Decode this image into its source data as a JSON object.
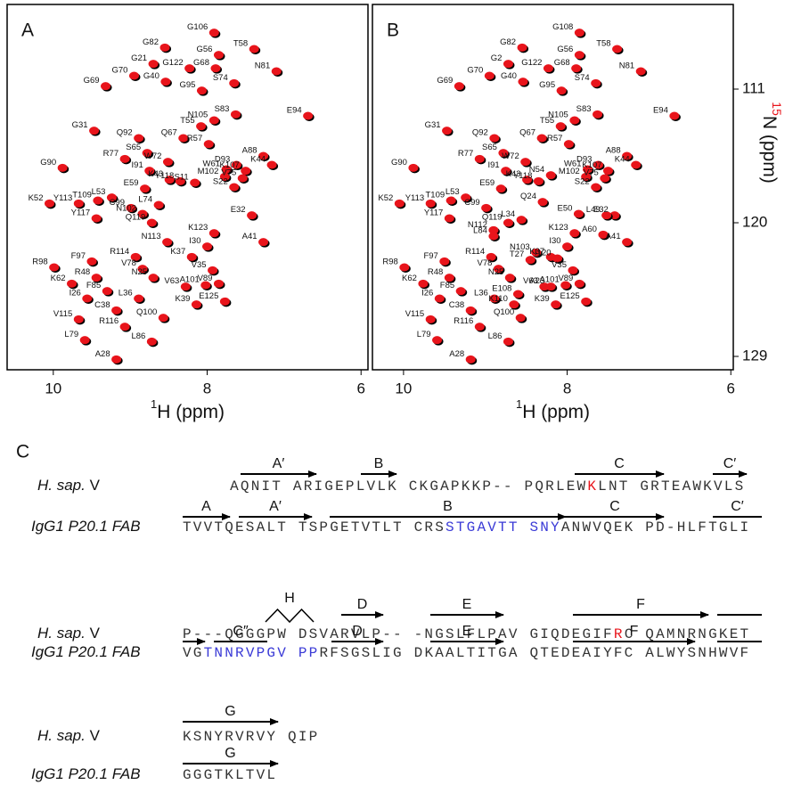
{
  "chart_data": [
    {
      "type": "scatter",
      "panel_label": "A",
      "color": "#e8141b",
      "shadow_color": "#000000",
      "x_label": {
        "superscript": "1",
        "text": "H (ppm)"
      },
      "xlim": [
        10.6,
        5.91
      ],
      "xticks": [
        10,
        8,
        6
      ],
      "ylim": [
        105.3,
        129.9
      ],
      "labels": [
        "G106",
        "G82",
        "T58",
        "G56",
        "G21",
        "G122",
        "G68",
        "N81",
        "G70",
        "G69",
        "G40",
        "G95",
        "S74",
        "E94",
        "G31",
        "S83",
        "N105",
        "T55",
        "Q67",
        "A88",
        "Q92",
        "R57",
        "D93",
        "K44",
        "G90",
        "S65",
        "W72",
        "R77",
        "I91",
        "K43",
        "S11",
        "Y118",
        "W61",
        "K107",
        "M102",
        "V75",
        "S22",
        "E32",
        "C99",
        "E59",
        "K52",
        "L53",
        "T109",
        "Y113",
        "Y117",
        "L74",
        "N102",
        "Q119",
        "K123",
        "A41",
        "R98",
        "F97",
        "R114",
        "V78",
        "N113",
        "K37",
        "I30",
        "V35",
        "K62",
        "R48",
        "N25",
        "V63",
        "A101",
        "V89",
        "F85",
        "I26",
        "L36",
        "K39",
        "E125",
        "C38",
        "Q100",
        "V115",
        "R116",
        "L79",
        "L86",
        "A28"
      ],
      "x": [
        7.91,
        8.55,
        7.39,
        7.85,
        8.7,
        8.23,
        7.89,
        7.1,
        8.95,
        9.32,
        8.54,
        8.07,
        7.65,
        6.69,
        9.47,
        7.63,
        7.91,
        8.08,
        8.31,
        7.27,
        8.89,
        7.98,
        7.62,
        7.16,
        9.88,
        8.78,
        8.51,
        9.07,
        8.75,
        8.49,
        8.16,
        8.35,
        7.75,
        7.5,
        7.77,
        7.54,
        7.65,
        7.42,
        8.99,
        8.81,
        10.05,
        9.24,
        9.42,
        9.67,
        9.44,
        8.63,
        8.84,
        8.72,
        7.91,
        7.27,
        9.99,
        9.5,
        8.93,
        8.84,
        8.52,
        8.2,
        8.0,
        7.93,
        9.76,
        9.44,
        8.7,
        8.28,
        8.02,
        7.85,
        9.3,
        9.56,
        8.89,
        8.14,
        7.77,
        9.18,
        8.57,
        9.67,
        9.07,
        9.59,
        8.72,
        9.18
      ],
      "values": [
        107.2,
        108.2,
        108.3,
        108.7,
        109.3,
        109.6,
        109.6,
        109.8,
        110.1,
        110.8,
        110.5,
        111.1,
        110.6,
        112.8,
        113.8,
        112.7,
        113.1,
        113.5,
        114.3,
        115.5,
        114.3,
        114.7,
        116.1,
        116.1,
        116.3,
        115.3,
        115.9,
        115.7,
        116.5,
        117.1,
        117.3,
        117.2,
        116.4,
        116.5,
        116.9,
        117.0,
        117.6,
        119.5,
        119.0,
        117.7,
        118.7,
        118.3,
        118.5,
        118.7,
        119.7,
        118.8,
        119.4,
        120.0,
        120.7,
        121.3,
        123.0,
        122.6,
        122.3,
        123.1,
        121.3,
        122.3,
        121.6,
        123.2,
        124.1,
        123.7,
        123.7,
        124.3,
        124.2,
        124.1,
        124.6,
        125.1,
        125.1,
        125.5,
        125.3,
        125.9,
        126.4,
        126.5,
        127.0,
        127.9,
        128.0,
        129.2
      ]
    },
    {
      "type": "scatter",
      "panel_label": "B",
      "color": "#e8141b",
      "shadow_color": "#000000",
      "x_label": {
        "superscript": "1",
        "text": "H (ppm)"
      },
      "y_label": {
        "superscript": "15",
        "superscript_color": "#e8141b",
        "text": "N (ppm)"
      },
      "xlim": [
        10.38,
        5.97
      ],
      "xticks": [
        10,
        8,
        6
      ],
      "ylim": [
        105.3,
        129.9
      ],
      "yticks": [
        111,
        120,
        129
      ],
      "labels": [
        "G108",
        "G82",
        "T58",
        "G56",
        "G2",
        "G122",
        "G68",
        "N81",
        "G70",
        "G69",
        "G40",
        "G95",
        "S74",
        "E94",
        "G31",
        "S83",
        "N105",
        "T55",
        "Q67",
        "A88",
        "Q92",
        "R57",
        "D93",
        "K44",
        "G90",
        "S65",
        "W72",
        "R77",
        "I91",
        "K43",
        "N54",
        "Y118",
        "W61",
        "K107",
        "M102",
        "V75",
        "S22",
        "E32",
        "C99",
        "E59",
        "K52",
        "L53",
        "T109",
        "Y113",
        "Y117",
        "Q24",
        "L49",
        "Q119",
        "K123",
        "A41",
        "R98",
        "F97",
        "R114",
        "V78",
        "A60",
        "K37",
        "I30",
        "V35",
        "K62",
        "R48",
        "N25",
        "V63",
        "A101",
        "V89",
        "F85",
        "I26",
        "L36",
        "K39",
        "E125",
        "C38",
        "Q100",
        "V115",
        "R116",
        "L79",
        "L86",
        "A28",
        "L34",
        "E50",
        "N112",
        "N103",
        "T27",
        "I120",
        "A23",
        "K110",
        "E108",
        "L84"
      ],
      "x": [
        7.85,
        8.55,
        7.39,
        7.85,
        8.72,
        8.23,
        7.89,
        7.1,
        8.95,
        9.32,
        8.54,
        8.07,
        7.65,
        6.69,
        9.47,
        7.63,
        7.91,
        8.08,
        8.31,
        7.27,
        8.89,
        7.98,
        7.62,
        7.16,
        9.88,
        8.78,
        8.51,
        9.07,
        8.75,
        8.49,
        8.2,
        8.35,
        7.75,
        7.5,
        7.77,
        7.54,
        7.65,
        7.42,
        8.99,
        8.81,
        10.05,
        9.24,
        9.42,
        9.67,
        9.44,
        8.3,
        7.52,
        8.72,
        7.91,
        7.27,
        9.99,
        9.5,
        8.93,
        8.84,
        7.56,
        8.2,
        8.0,
        7.93,
        9.76,
        9.44,
        8.7,
        8.28,
        8.02,
        7.85,
        9.3,
        9.56,
        8.89,
        8.14,
        7.77,
        9.18,
        8.57,
        9.67,
        9.07,
        9.59,
        8.72,
        9.18,
        8.56,
        7.86,
        8.9,
        8.38,
        8.45,
        8.12,
        8.2,
        8.65,
        8.6,
        8.9
      ],
      "values": [
        107.2,
        108.2,
        108.3,
        108.7,
        109.3,
        109.6,
        109.6,
        109.8,
        110.1,
        110.8,
        110.5,
        111.1,
        110.6,
        112.8,
        113.8,
        112.7,
        113.1,
        113.5,
        114.3,
        115.5,
        114.3,
        114.7,
        116.1,
        116.1,
        116.3,
        115.3,
        115.9,
        115.7,
        116.5,
        117.1,
        116.8,
        117.2,
        116.4,
        116.5,
        116.9,
        117.0,
        117.6,
        119.5,
        119.0,
        117.7,
        118.7,
        118.3,
        118.5,
        118.7,
        119.7,
        118.6,
        119.5,
        120.0,
        120.7,
        121.3,
        123.0,
        122.6,
        122.3,
        123.1,
        120.8,
        122.3,
        121.6,
        123.2,
        124.1,
        123.7,
        123.7,
        124.3,
        124.2,
        124.1,
        124.6,
        125.1,
        125.1,
        125.5,
        125.3,
        125.9,
        126.4,
        126.5,
        127.0,
        127.9,
        128.0,
        129.2,
        119.8,
        119.4,
        120.5,
        122.0,
        122.5,
        122.4,
        124.3,
        125.5,
        124.8,
        120.9
      ]
    }
  ],
  "panel_c": {
    "label": "C",
    "blocks": [
      {
        "rows": [
          {
            "species_italic": "H. sap.",
            "species_plain": "V",
            "strands": [
              "A′",
              "B",
              "C",
              "C′"
            ],
            "segments": [
              {
                "text": "AQNIT ARIGEPLVLK CKGAPKKP-- PQRLEW"
              },
              {
                "text": "K",
                "color": "#e8141b"
              },
              {
                "text": "LNT GRTEAWKVLS"
              }
            ]
          },
          {
            "species_italic": "IgG1 P20.1 FAB",
            "strands": [
              "A",
              "A′",
              "B",
              "C",
              "C′"
            ],
            "segments": [
              {
                "text": "TVVTQESALT TSPGETVTLT CRS"
              },
              {
                "text": "STGAVTT SNY",
                "color": "#3a3ad6"
              },
              {
                "text": "ANWVQEK PD-HLFTGLI"
              }
            ]
          }
        ]
      },
      {
        "rows": [
          {
            "species_italic": "H. sap.",
            "species_plain": "V",
            "strands": [
              "H",
              "D",
              "E",
              "F"
            ],
            "segments": [
              {
                "text": "P---QGGGPW DSVARVLP-- -NGSLFLPAV GIQDEGIF"
              },
              {
                "text": "R",
                "color": "#e8141b"
              },
              {
                "text": "C QAMNRNGKET"
              }
            ]
          },
          {
            "species_italic": "IgG1 P20.1 FAB",
            "strands": [
              "C″",
              "D",
              "E",
              "F"
            ],
            "segments": [
              {
                "text": "VG"
              },
              {
                "text": "TNNRVPGV PP",
                "color": "#3a3ad6"
              },
              {
                "text": "RFSGSLIG DKAALTITGA QTEDEAIYFC ALWYSNHWVF"
              }
            ]
          }
        ]
      },
      {
        "rows": [
          {
            "species_italic": "H. sap.",
            "species_plain": "V",
            "strands": [
              "G"
            ],
            "segments": [
              {
                "text": "KSNYRVRVY QIP"
              }
            ]
          },
          {
            "species_italic": "IgG1 P20.1 FAB",
            "strands": [
              "G"
            ],
            "segments": [
              {
                "text": "GGGTKLTVL"
              }
            ]
          }
        ]
      }
    ]
  }
}
